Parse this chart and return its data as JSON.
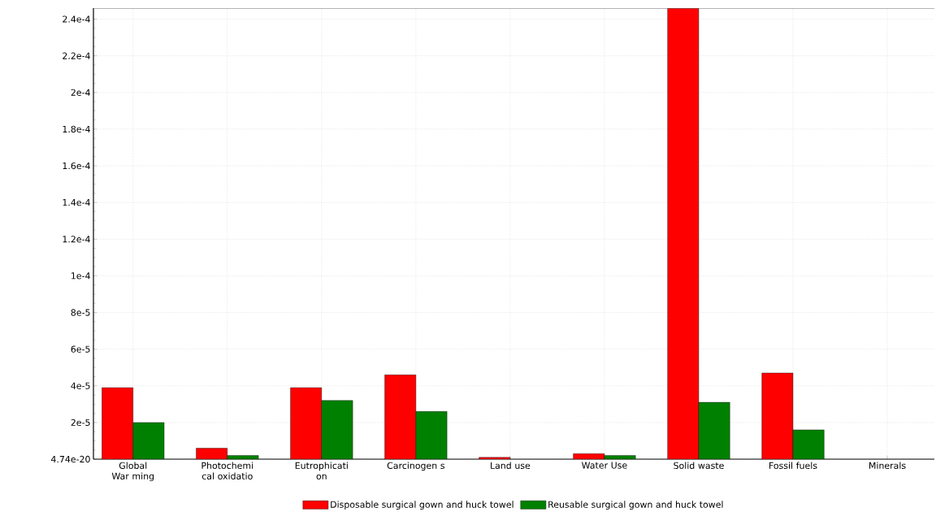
{
  "chart_data": {
    "type": "bar",
    "categories": [
      "Global War ming",
      "Photochemi cal oxidatio",
      "Eutrophicati on",
      "Carcinogen s",
      "Land use",
      "Water Use",
      "Solid waste",
      "Fossil fuels",
      "Minerals"
    ],
    "series": [
      {
        "name": "Disposable surgical gown and huck towel",
        "color": "#ff0000",
        "values": [
          3.9e-05,
          6e-06,
          3.9e-05,
          4.6e-05,
          1e-06,
          3e-06,
          0.000246,
          4.7e-05,
          null
        ]
      },
      {
        "name": "Reusable surgical gown and huck towel",
        "color": "#008000",
        "values": [
          2e-05,
          2e-06,
          3.2e-05,
          2.6e-05,
          null,
          2e-06,
          3.1e-05,
          1.6e-05,
          null
        ]
      }
    ],
    "ylim": [
      4.74e-20,
      0.000246
    ],
    "yticks": [
      {
        "value": 4.74e-20,
        "label": "4.74e-20"
      },
      {
        "value": 2e-05,
        "label": "2e-5"
      },
      {
        "value": 4e-05,
        "label": "4e-5"
      },
      {
        "value": 6e-05,
        "label": "6e-5"
      },
      {
        "value": 8e-05,
        "label": "8e-5"
      },
      {
        "value": 0.0001,
        "label": "1e-4"
      },
      {
        "value": 0.00012,
        "label": "1.2e-4"
      },
      {
        "value": 0.00014,
        "label": "1.4e-4"
      },
      {
        "value": 0.00016,
        "label": "1.6e-4"
      },
      {
        "value": 0.00018,
        "label": "1.8e-4"
      },
      {
        "value": 0.0002,
        "label": "2e-4"
      },
      {
        "value": 0.00022,
        "label": "2.2e-4"
      },
      {
        "value": 0.00024,
        "label": "2.4e-4"
      }
    ],
    "grid": true,
    "legend": "bottom"
  }
}
